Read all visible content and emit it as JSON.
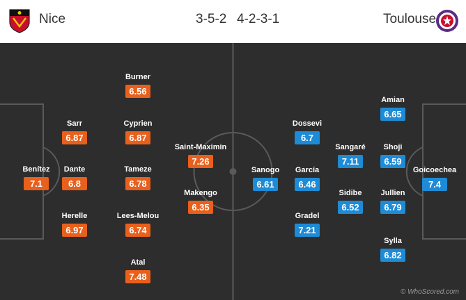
{
  "header": {
    "home_team": "Nice",
    "away_team": "Toulouse",
    "home_formation": "3-5-2",
    "away_formation": "4-2-3-1"
  },
  "colors": {
    "home_rating": "#e8601c",
    "away_rating": "#1e8bd6",
    "pitch": "#2d2d2d"
  },
  "home_players": [
    {
      "name": "Benítez",
      "rating": "7.1"
    },
    {
      "name": "Sarr",
      "rating": "6.87"
    },
    {
      "name": "Dante",
      "rating": "6.8"
    },
    {
      "name": "Herelle",
      "rating": "6.97"
    },
    {
      "name": "Burner",
      "rating": "6.56"
    },
    {
      "name": "Cyprien",
      "rating": "6.87"
    },
    {
      "name": "Tameze",
      "rating": "6.78"
    },
    {
      "name": "Lees-Melou",
      "rating": "6.74"
    },
    {
      "name": "Atal",
      "rating": "7.48"
    },
    {
      "name": "Saint-Maximin",
      "rating": "7.26"
    },
    {
      "name": "Makengo",
      "rating": "6.35"
    }
  ],
  "away_players": [
    {
      "name": "Sanogo",
      "rating": "6.61"
    },
    {
      "name": "Dossevi",
      "rating": "6.7"
    },
    {
      "name": "García",
      "rating": "6.46"
    },
    {
      "name": "Gradel",
      "rating": "7.21"
    },
    {
      "name": "Sangaré",
      "rating": "7.11"
    },
    {
      "name": "Sidibe",
      "rating": "6.52"
    },
    {
      "name": "Amian",
      "rating": "6.65"
    },
    {
      "name": "Shoji",
      "rating": "6.59"
    },
    {
      "name": "Jullien",
      "rating": "6.79"
    },
    {
      "name": "Sylla",
      "rating": "6.82"
    },
    {
      "name": "Goicoechea",
      "rating": "7.4"
    }
  ],
  "watermark": "© WhoScored.com"
}
